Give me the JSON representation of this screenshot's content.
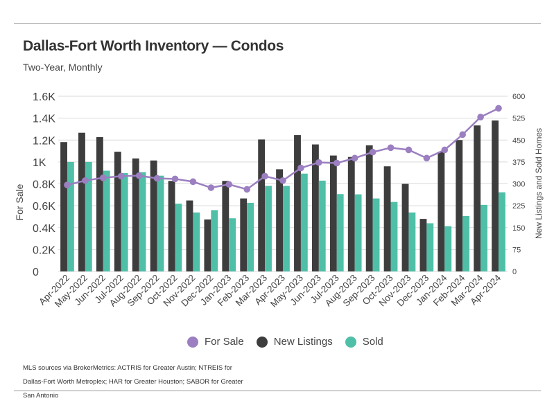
{
  "title": "Dallas-Fort Worth Inventory — Condos",
  "subtitle": "Two-Year, Monthly",
  "legend": {
    "for_sale": "For Sale",
    "new_listings": "New Listings",
    "sold": "Sold"
  },
  "source": "MLS sources via BrokerMetrics: ACTRIS for Greater Austin; NTREIS for Dallas-Fort Worth Metroplex; HAR for Greater Houston; SABOR for Greater San Antonio",
  "colors": {
    "for_sale": "#9b7fc1",
    "new_listings": "#3d3d3d",
    "sold": "#4fbfa8",
    "grid": "#d9d9d9"
  },
  "chart_data": {
    "type": "bar",
    "categories": [
      "Apr-2022",
      "May-2022",
      "Jun-2022",
      "Jul-2022",
      "Aug-2022",
      "Sep-2022",
      "Oct-2022",
      "Nov-2022",
      "Dec-2022",
      "Jan-2023",
      "Feb-2023",
      "Mar-2023",
      "Apr-2023",
      "May-2023",
      "Jun-2023",
      "Jul-2023",
      "Aug-2023",
      "Sep-2023",
      "Oct-2023",
      "Nov-2023",
      "Dec-2023",
      "Jan-2024",
      "Feb-2024",
      "Mar-2024",
      "Apr-2024"
    ],
    "ylabel": "For Sale",
    "y2label": "New Listings and Sold Homes",
    "ylim": [
      0,
      1600
    ],
    "y2lim": [
      0,
      600
    ],
    "yticks": [
      "0",
      "0.2K",
      "0.4K",
      "0.6K",
      "0.8K",
      "1K",
      "1.2K",
      "1.4K",
      "1.6K"
    ],
    "y2ticks": [
      "0",
      "75",
      "150",
      "225",
      "300",
      "375",
      "450",
      "525",
      "600"
    ],
    "grid": true,
    "legend_position": "bottom",
    "series": [
      {
        "name": "For Sale",
        "type": "line",
        "axis": "left",
        "values": [
          790,
          830,
          855,
          870,
          875,
          850,
          845,
          820,
          765,
          795,
          750,
          870,
          830,
          945,
          995,
          990,
          1035,
          1090,
          1130,
          1110,
          1035,
          1110,
          1250,
          1410,
          1490
        ]
      },
      {
        "name": "New Listings",
        "type": "bar",
        "axis": "right",
        "values": [
          443,
          475,
          460,
          410,
          387,
          380,
          310,
          243,
          178,
          310,
          250,
          452,
          350,
          467,
          435,
          397,
          392,
          432,
          360,
          300,
          180,
          410,
          450,
          500,
          517
        ]
      },
      {
        "name": "Sold",
        "type": "bar",
        "axis": "right",
        "values": [
          375,
          375,
          345,
          337,
          340,
          328,
          232,
          202,
          210,
          182,
          235,
          293,
          293,
          335,
          311,
          265,
          264,
          250,
          238,
          202,
          165,
          155,
          190,
          228,
          271
        ]
      }
    ]
  }
}
